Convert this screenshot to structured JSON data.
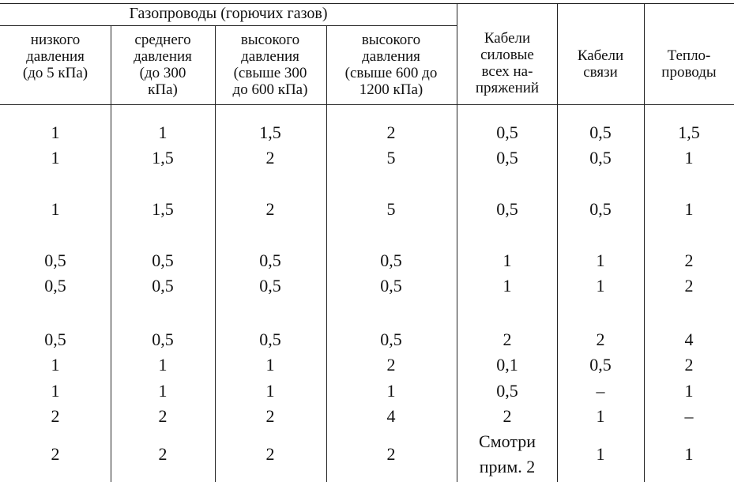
{
  "table": {
    "group_header": "Газопроводы (горючих газов)",
    "columns": [
      "низкого\nдавления\n(до 5 кПа)",
      "среднего\nдавления\n(до 300\nкПа)",
      "высокого\nдавления\n(свыше 300\nдо 600 кПа)",
      "высокого\nдавления\n(свыше 600 до\n1200 кПа)",
      "Кабели\nсиловые\nвсех на-\nпряжений",
      "Кабели\nсвязи",
      "Тепло-\nпроводы"
    ],
    "rows": [
      [
        "1",
        "1",
        "1,5",
        "2",
        "0,5",
        "0,5",
        "1,5"
      ],
      [
        "1",
        "1,5",
        "2",
        "5",
        "0,5",
        "0,5",
        "1"
      ],
      [
        "1",
        "1,5",
        "2",
        "5",
        "0,5",
        "0,5",
        "1"
      ],
      [
        "0,5",
        "0,5",
        "0,5",
        "0,5",
        "1",
        "1",
        "2"
      ],
      [
        "0,5",
        "0,5",
        "0,5",
        "0,5",
        "1",
        "1",
        "2"
      ],
      [
        "0,5",
        "0,5",
        "0,5",
        "0,5",
        "2",
        "2",
        "4"
      ],
      [
        "1",
        "1",
        "1",
        "2",
        "0,1",
        "0,5",
        "2"
      ],
      [
        "1",
        "1",
        "1",
        "1",
        "0,5",
        "–",
        "1"
      ],
      [
        "2",
        "2",
        "2",
        "4",
        "2",
        "1",
        "–"
      ],
      [
        "2",
        "2",
        "2",
        "2",
        "Смотри прим. 2",
        "1",
        "1"
      ]
    ]
  }
}
